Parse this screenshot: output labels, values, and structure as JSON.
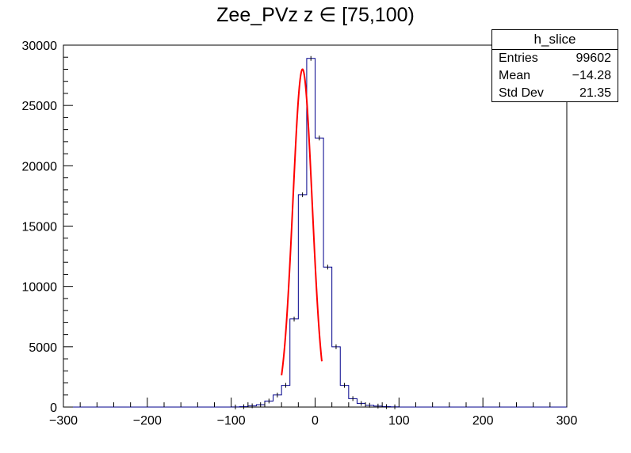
{
  "chart_data": {
    "type": "histogram",
    "title": "Zee_PVz z  ∈ [75,100)",
    "xlabel": "",
    "ylabel": "",
    "xlim": [
      -300,
      300
    ],
    "ylim": [
      0,
      30000
    ],
    "x_ticks": [
      -300,
      -200,
      -100,
      0,
      100,
      200,
      300
    ],
    "x_tick_labels": [
      "−300",
      "−200",
      "−100",
      "0",
      "100",
      "200",
      "300"
    ],
    "y_ticks": [
      0,
      5000,
      10000,
      15000,
      20000,
      25000,
      30000
    ],
    "y_tick_labels": [
      "0",
      "5000",
      "10000",
      "15000",
      "20000",
      "25000",
      "30000"
    ],
    "grid": false,
    "histogram": {
      "name": "h_slice",
      "color": "#00008b",
      "bin_width": 10,
      "bin_edges_start": -300,
      "counts": [
        0,
        0,
        0,
        0,
        0,
        0,
        0,
        0,
        0,
        0,
        0,
        0,
        0,
        0,
        0,
        0,
        0,
        0,
        0,
        0,
        10,
        30,
        100,
        200,
        500,
        1000,
        1800,
        7300,
        17600,
        28900,
        22300,
        11600,
        5000,
        1800,
        700,
        300,
        150,
        80,
        40,
        20,
        0,
        0,
        0,
        0,
        0,
        0,
        0,
        0,
        0,
        0,
        0,
        0,
        0,
        0,
        0,
        0,
        0,
        0,
        0,
        0
      ]
    },
    "fit": {
      "type": "gaussian",
      "color": "#ff0000",
      "amplitude": 28000,
      "mean": -15,
      "sigma": 11.5,
      "range": [
        -40,
        8
      ]
    },
    "stats_box": {
      "title": "h_slice",
      "rows": [
        {
          "label": "Entries",
          "value": "99602"
        },
        {
          "label": "Mean",
          "value": "−14.28"
        },
        {
          "label": "Std Dev",
          "value": "21.35"
        }
      ]
    }
  }
}
